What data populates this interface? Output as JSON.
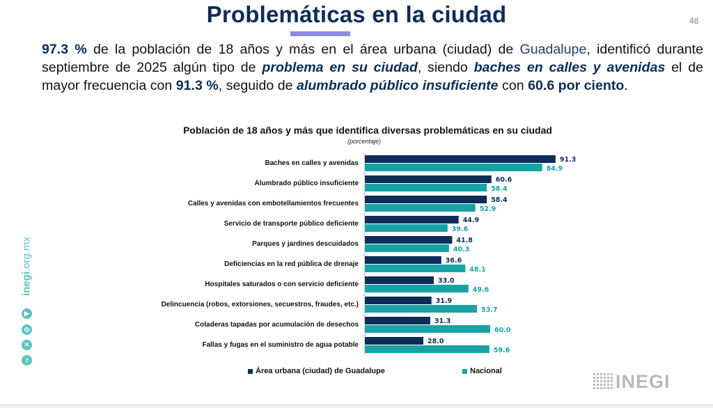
{
  "header": {
    "title": "Problemáticas en la ciudad",
    "page_number": "48"
  },
  "intro": {
    "p1": "97.3 %",
    "p2": " de la población de 18 años y más en el área urbana (ciudad) de ",
    "p3": "Guadalupe",
    "p4": ", identificó durante septiembre de 2025 algún tipo de ",
    "p5": "problema en su ciudad",
    "p6": ", siendo ",
    "p7": "baches en calles y avenidas",
    "p8": " el de mayor frecuencia con ",
    "p9": "91.3 %",
    "p10": ", seguido de ",
    "p11": "alumbrado público insuficiente",
    "p12": " con ",
    "p13": "60.6 por ciento",
    "p14": "."
  },
  "sidebar": {
    "url_bold": "inegi",
    "url_rest": ".org.mx",
    "icons": [
      "youtube-icon",
      "instagram-icon",
      "x-icon",
      "facebook-icon"
    ]
  },
  "logo": {
    "text": "INEGI"
  },
  "colors": {
    "series_a": "#0c2d57",
    "series_b": "#17a3a6",
    "accent": "#8b8be6"
  },
  "chart_data": {
    "type": "bar",
    "orientation": "horizontal",
    "title": "Población de 18 años y más que identifica diversas problemáticas en su ciudad",
    "subtitle": "(porcentaje)",
    "xlabel": "",
    "ylabel": "",
    "xlim": [
      0,
      100
    ],
    "grid": false,
    "legend_position": "bottom",
    "categories": [
      "Baches en calles y avenidas",
      "Alumbrado público insuficiente",
      "Calles y avenidas con embotellamientos frecuentes",
      "Servicio de transporte público deficiente",
      "Parques y jardines descuidados",
      "Deficiencias en la red pública de drenaje",
      "Hospitales saturados o con servicio deficiente",
      "Delincuencia (robos, extorsiones, secuestros, fraudes, etc.)",
      "Coladeras tapadas por acumulación de desechos",
      "Fallas y fugas en el suministro de agua potable"
    ],
    "series": [
      {
        "name": "Área urbana (ciudad) de Guadalupe",
        "values": [
          91.3,
          60.6,
          58.4,
          44.9,
          41.8,
          36.6,
          33.0,
          31.9,
          31.3,
          28.0
        ],
        "labels": [
          "91.3",
          "60.6",
          "58.4",
          "44.9",
          "41.8",
          "36.6",
          "33.0",
          "31.9",
          "31.3",
          "28.0"
        ]
      },
      {
        "name": "Nacional",
        "values": [
          84.9,
          58.4,
          52.9,
          39.6,
          40.3,
          48.1,
          49.6,
          53.7,
          60.0,
          59.6
        ],
        "labels": [
          "84.9",
          "58.4",
          "52.9",
          "39.6",
          "40.3",
          "48.1",
          "49.6",
          "53.7",
          "60.0",
          "59.6"
        ]
      }
    ]
  }
}
